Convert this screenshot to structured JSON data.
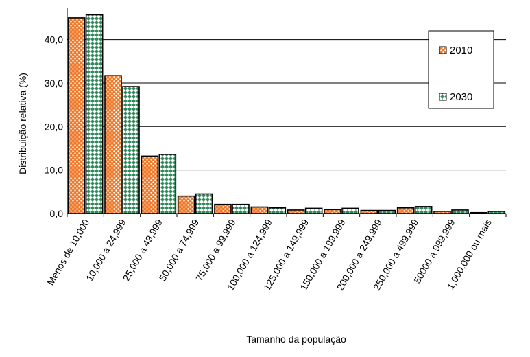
{
  "chart_data": {
    "type": "bar",
    "title": "",
    "xlabel": "Tamanho da população",
    "ylabel": "Distribuição relativa (%)",
    "ylim": [
      0,
      45
    ],
    "yticks": [
      "0,0",
      "10,0",
      "20,0",
      "30,0",
      "40,0"
    ],
    "grid": true,
    "legend_position": "top-right",
    "categories": [
      "Menos de 10,000",
      "10,000 a 24,999",
      "25,000 a 49,999",
      "50,000 a 74,999",
      "75,000 a 99,999",
      "100,000 a 124,999",
      "125,000 a 149,999",
      "150,000 a 199,999",
      "200,000 a 249,999",
      "250,000 a 499,999",
      "50000 a 999,999",
      "1,000,000 ou mais"
    ],
    "series": [
      {
        "name": "2010",
        "color": "#f07a2c",
        "values": [
          45.0,
          31.7,
          13.2,
          4.0,
          2.1,
          1.5,
          0.8,
          0.9,
          0.7,
          1.3,
          0.5,
          0.2
        ]
      },
      {
        "name": "2030",
        "color": "#2e8b5a",
        "values": [
          45.7,
          29.2,
          13.6,
          4.5,
          2.1,
          1.3,
          1.2,
          1.2,
          0.7,
          1.6,
          0.8,
          0.5
        ]
      }
    ]
  }
}
